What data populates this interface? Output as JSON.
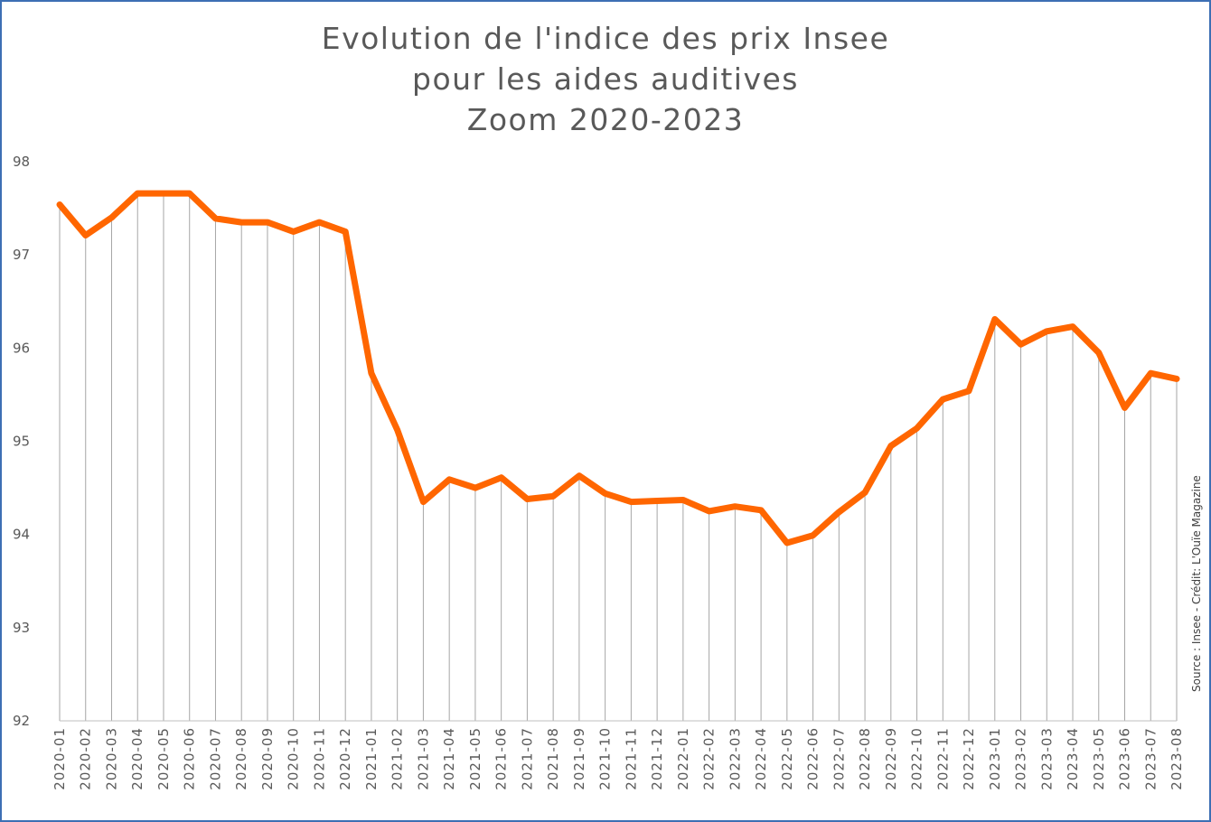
{
  "chart_data": {
    "type": "line",
    "title": [
      "Evolution de l'indice des prix Insee",
      "pour les aides auditives",
      "Zoom 2020-2023"
    ],
    "credit": "Source : Insee - Crédit: L'Ouïe Magazine",
    "ylim": [
      92,
      98
    ],
    "yticks": [
      92,
      93,
      94,
      95,
      96,
      97,
      98
    ],
    "grid": "vertical drop lines at each point",
    "legend": "none",
    "line_color": "#ff6600",
    "categories": [
      "2020-01",
      "2020-02",
      "2020-03",
      "2020-04",
      "2020-05",
      "2020-06",
      "2020-07",
      "2020-08",
      "2020-09",
      "2020-10",
      "2020-11",
      "2020-12",
      "2021-01",
      "2021-02",
      "2021-03",
      "2021-04",
      "2021-05",
      "2021-06",
      "2021-07",
      "2021-08",
      "2021-09",
      "2021-10",
      "2021-11",
      "2021-12",
      "2022-01",
      "2022-02",
      "2022-03",
      "2022-04",
      "2022-05",
      "2022-06",
      "2022-07",
      "2022-08",
      "2022-09",
      "2022-10",
      "2022-11",
      "2022-12",
      "2023-01",
      "2023-02",
      "2023-03",
      "2023-04",
      "2023-05",
      "2023-06",
      "2023-07",
      "2023-08"
    ],
    "series": [
      {
        "values": [
          97.54,
          97.21,
          97.4,
          97.66,
          97.66,
          97.66,
          97.39,
          97.35,
          97.35,
          97.25,
          97.35,
          97.25,
          95.73,
          95.12,
          94.35,
          94.59,
          94.5,
          94.61,
          94.38,
          94.41,
          94.63,
          94.44,
          94.35,
          94.36,
          94.37,
          94.25,
          94.3,
          94.26,
          93.91,
          93.99,
          94.24,
          94.45,
          94.95,
          95.14,
          95.45,
          95.54,
          96.31,
          96.04,
          96.18,
          96.23,
          95.95,
          95.36,
          95.73,
          95.67
        ]
      }
    ]
  }
}
